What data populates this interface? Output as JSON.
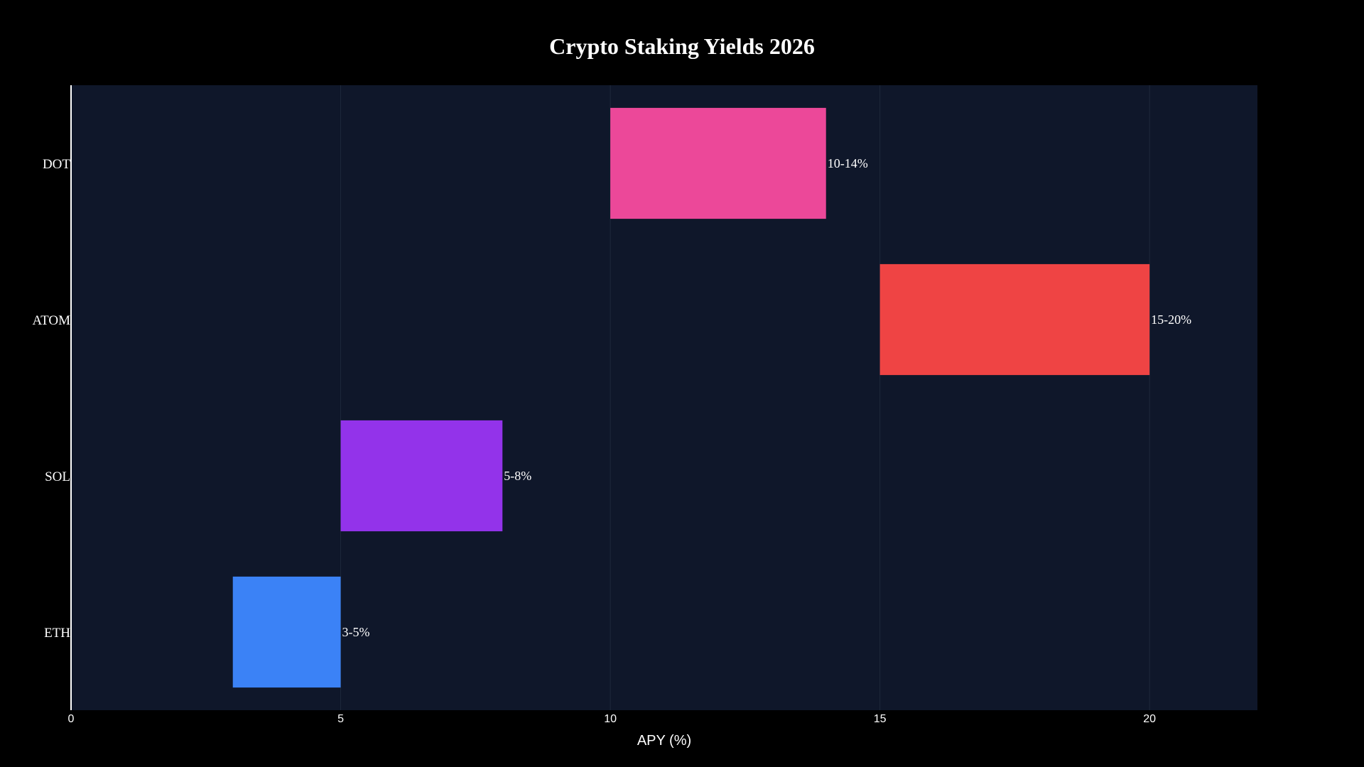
{
  "colors": {
    "page_background": "#000000",
    "plot_background": "#0f172a",
    "grid": "#1e293b",
    "axis_line": "#ffffff",
    "text": "#ffffff"
  },
  "chart_data": {
    "type": "bar",
    "orientation": "horizontal",
    "subtype": "floating-range",
    "title": "Crypto Staking Yields 2026",
    "xlabel": "APY (%)",
    "ylabel": "",
    "xlim": [
      0,
      22
    ],
    "x_ticks": [
      0,
      5,
      10,
      15,
      20
    ],
    "grid": true,
    "legend": "none",
    "categories": [
      "DOT",
      "ATOM",
      "SOL",
      "ETH"
    ],
    "ranges": [
      {
        "category": "DOT",
        "low": 10,
        "high": 14,
        "label": "10-14%",
        "color": "#ec4899"
      },
      {
        "category": "ATOM",
        "low": 15,
        "high": 20,
        "label": "15-20%",
        "color": "#ef4444"
      },
      {
        "category": "SOL",
        "low": 5,
        "high": 8,
        "label": "5-8%",
        "color": "#9333ea"
      },
      {
        "category": "ETH",
        "low": 3,
        "high": 5,
        "label": "3-5%",
        "color": "#3b82f6"
      }
    ]
  }
}
